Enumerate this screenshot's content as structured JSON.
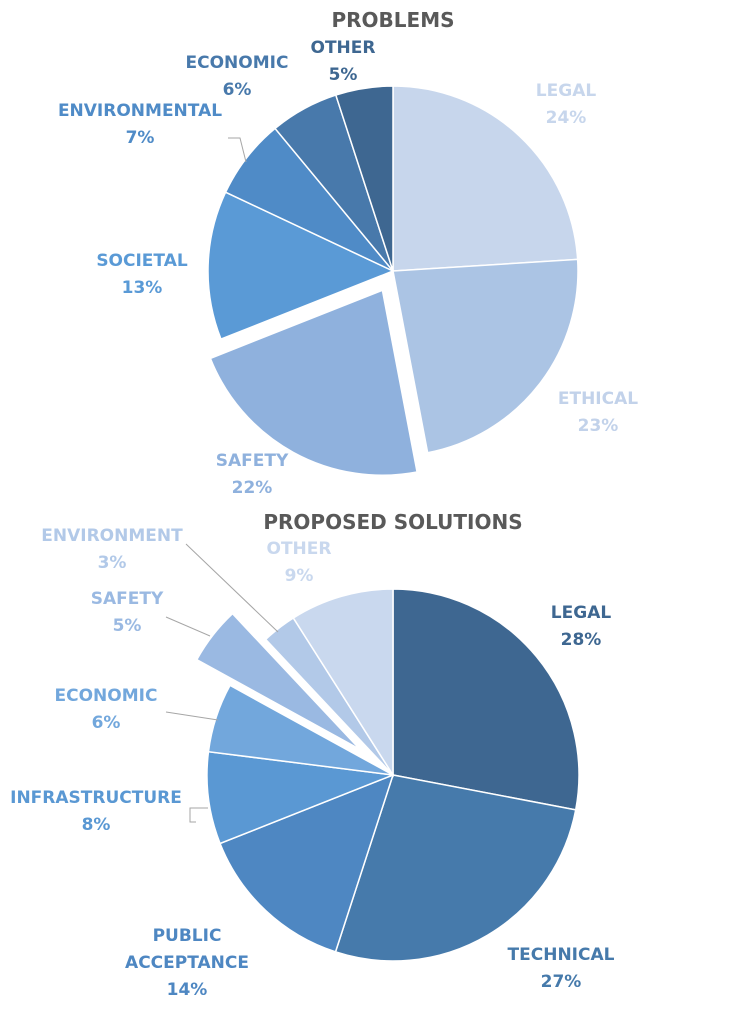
{
  "chart_data": [
    {
      "type": "pie",
      "title": "PROBLEMS",
      "slices": [
        {
          "label": "LEGAL",
          "value": 24,
          "value_label": "24%",
          "color": "#c7d6ec",
          "exploded": false
        },
        {
          "label": "ETHICAL",
          "value": 23,
          "value_label": "23%",
          "color": "#abc4e4",
          "exploded": false
        },
        {
          "label": "SAFETY",
          "value": 22,
          "value_label": "22%",
          "color": "#8fb1dd",
          "exploded": true
        },
        {
          "label": "SOCIETAL",
          "value": 13,
          "value_label": "13%",
          "color": "#5a9ad6",
          "exploded": false
        },
        {
          "label": "ENVIRONMENTAL",
          "value": 7,
          "value_label": "7%",
          "color": "#4f8bc7",
          "exploded": false
        },
        {
          "label": "ECONOMIC",
          "value": 6,
          "value_label": "6%",
          "color": "#4879ab",
          "exploded": false
        },
        {
          "label": "OTHER",
          "value": 5,
          "value_label": "5%",
          "color": "#3e6791",
          "exploded": false
        }
      ]
    },
    {
      "type": "pie",
      "title": "PROPOSED SOLUTIONS",
      "slices": [
        {
          "label": "LEGAL",
          "value": 28,
          "value_label": "28%",
          "color": "#3e6791",
          "exploded": false
        },
        {
          "label": "TECHNICAL",
          "value": 27,
          "value_label": "27%",
          "color": "#467aab",
          "exploded": false
        },
        {
          "label": "PUBLIC ACCEPTANCE",
          "value": 14,
          "value_label": "14%",
          "color": "#4e87c2",
          "exploded": false
        },
        {
          "label": "INFRASTRUCTURE",
          "value": 8,
          "value_label": "8%",
          "color": "#5a98d3",
          "exploded": false
        },
        {
          "label": "ECONOMIC",
          "value": 6,
          "value_label": "6%",
          "color": "#72a7dc",
          "exploded": false
        },
        {
          "label": "SAFETY",
          "value": 5,
          "value_label": "5%",
          "color": "#9ab9e2",
          "exploded": true
        },
        {
          "label": "ENVIRONMENT",
          "value": 3,
          "value_label": "3%",
          "color": "#b2c9e8",
          "exploded": false
        },
        {
          "label": "OTHER",
          "value": 9,
          "value_label": "9%",
          "color": "#c9d8ee",
          "exploded": false
        }
      ]
    }
  ]
}
